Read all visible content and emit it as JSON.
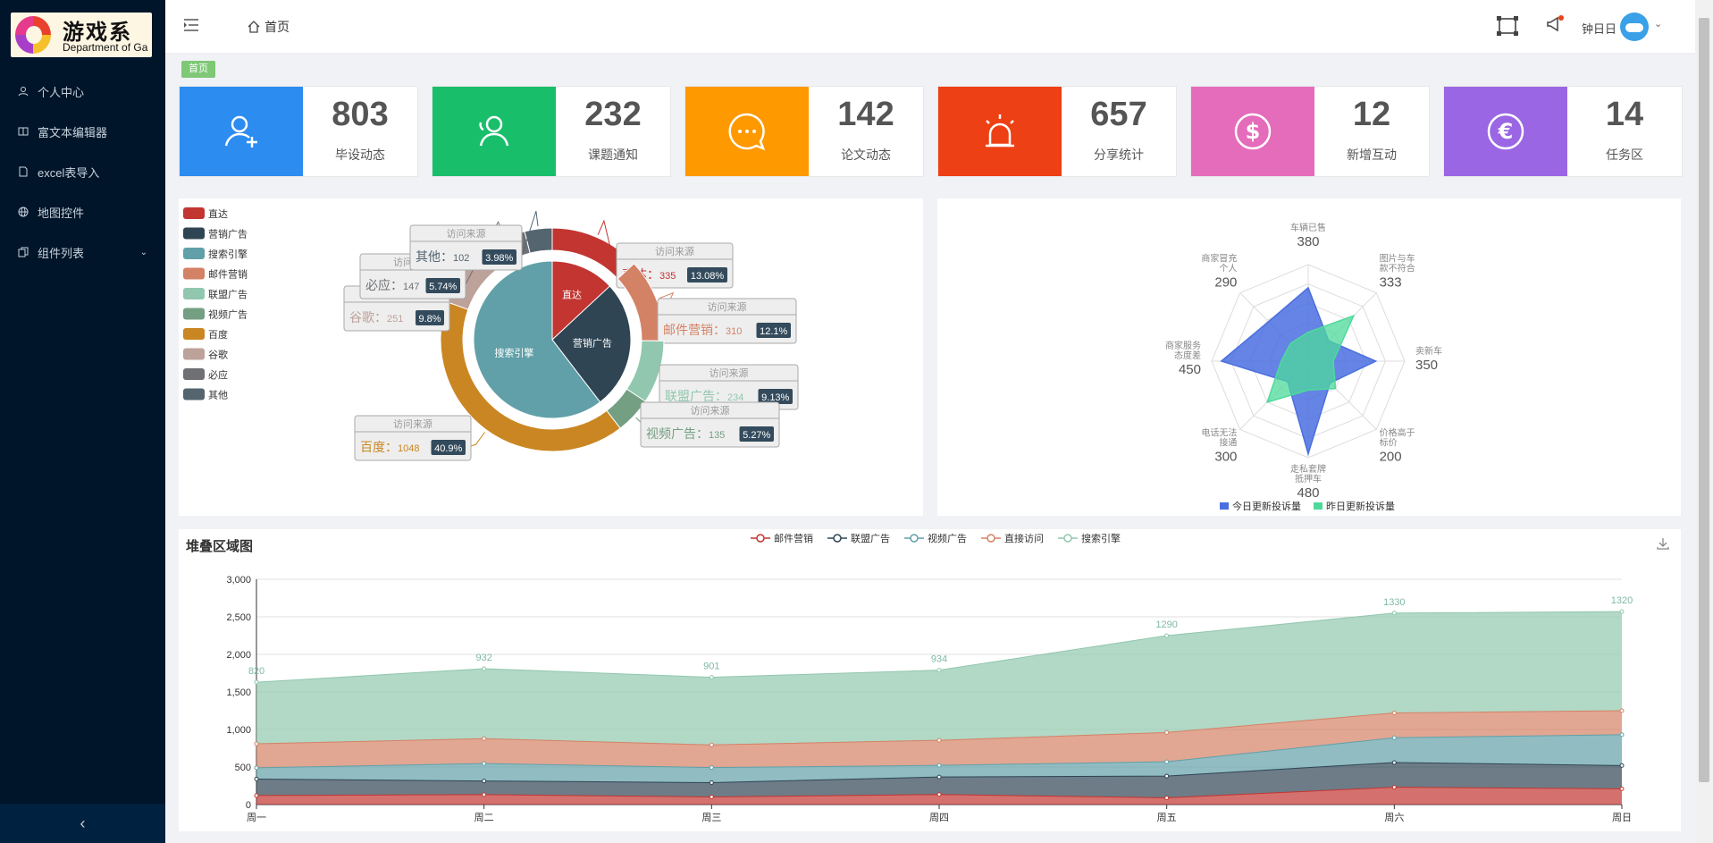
{
  "sidebar": {
    "logo_title": "游戏系",
    "logo_subtitle": "Department of Ga",
    "items": [
      {
        "label": "个人中心"
      },
      {
        "label": "富文本编辑器"
      },
      {
        "label": "excel表导入"
      },
      {
        "label": "地图控件"
      },
      {
        "label": "组件列表"
      }
    ]
  },
  "header": {
    "breadcrumb": "首页",
    "username": "钟日日"
  },
  "tag": "首页",
  "cards": [
    {
      "value": "803",
      "label": "毕设动态",
      "color": "#2d8cf0",
      "icon": "user-add-icon"
    },
    {
      "value": "232",
      "label": "课题通知",
      "color": "#19be6b",
      "icon": "users-icon"
    },
    {
      "value": "142",
      "label": "论文动态",
      "color": "#ff9900",
      "icon": "chat-icon"
    },
    {
      "value": "657",
      "label": "分享统计",
      "color": "#ed4014",
      "icon": "alarm-icon"
    },
    {
      "value": "12",
      "label": "新增互动",
      "color": "#e46cbb",
      "icon": "dollar-icon"
    },
    {
      "value": "14",
      "label": "任务区",
      "color": "#9a66e4",
      "icon": "euro-icon"
    }
  ],
  "chart_data": [
    {
      "type": "pie",
      "title": "",
      "tooltip_title": "访问来源",
      "legend": [
        "直达",
        "营销广告",
        "搜索引擎",
        "邮件营销",
        "联盟广告",
        "视频广告",
        "百度",
        "谷歌",
        "必应",
        "其他"
      ],
      "colors": {
        "直达": "#c23531",
        "营销广告": "#2f4554",
        "搜索引擎": "#61a0a8",
        "邮件营销": "#d48265",
        "联盟广告": "#91c7ae",
        "视频广告": "#749f83",
        "百度": "#ca8622",
        "谷歌": "#bda29a",
        "必应": "#6e7074",
        "其他": "#546570"
      },
      "inner": [
        {
          "name": "直达",
          "value": 335
        },
        {
          "name": "营销广告",
          "value": 679
        },
        {
          "name": "搜索引擎",
          "value": 1548
        }
      ],
      "outer": [
        {
          "name": "直达",
          "value": 335,
          "pct": "13.08%"
        },
        {
          "name": "邮件营销",
          "value": 310,
          "pct": "12.1%"
        },
        {
          "name": "联盟广告",
          "value": 234,
          "pct": "9.13%"
        },
        {
          "name": "视频广告",
          "value": 135,
          "pct": "5.27%"
        },
        {
          "name": "百度",
          "value": 1048,
          "pct": "40.9%"
        },
        {
          "name": "谷歌",
          "value": 251,
          "pct": "9.8%"
        },
        {
          "name": "必应",
          "value": 147,
          "pct": "5.74%"
        },
        {
          "name": "其他",
          "value": 102,
          "pct": "3.98%"
        }
      ]
    },
    {
      "type": "radar",
      "indicators": [
        {
          "name": "车辆已售",
          "max": 500
        },
        {
          "name": "图片与车款不符合",
          "max": 500
        },
        {
          "name": "卖新车",
          "max": 500
        },
        {
          "name": "价格高于标价",
          "max": 500
        },
        {
          "name": "走私套牌抵押车",
          "max": 500
        },
        {
          "name": "电话无法接通",
          "max": 500
        },
        {
          "name": "商家服务态度差",
          "max": 500
        },
        {
          "name": "商家冒充个人",
          "max": 500
        }
      ],
      "indicator_lines": [
        [
          "车辆已售"
        ],
        [
          "图片与车",
          "款不符合"
        ],
        [
          "卖新车"
        ],
        [
          "价格高于",
          "标价"
        ],
        [
          "走私套牌",
          "抵押车"
        ],
        [
          "电话无法",
          "接通"
        ],
        [
          "商家服务",
          "态度差"
        ],
        [
          "商家冒充",
          "个人"
        ]
      ],
      "value_labels": [
        "380",
        "333",
        "350",
        "200",
        "480",
        "300",
        "450",
        "290"
      ],
      "series": [
        {
          "name": "今日更新投诉量",
          "values": [
            380,
            150,
            350,
            160,
            480,
            150,
            450,
            290
          ],
          "color": "#4a6fe0"
        },
        {
          "name": "昨日更新投诉量",
          "values": [
            150,
            333,
            130,
            200,
            150,
            300,
            140,
            130
          ],
          "color": "#4ed99b"
        }
      ]
    },
    {
      "type": "area",
      "title": "堆叠区域图",
      "categories": [
        "周一",
        "周二",
        "周三",
        "周四",
        "周五",
        "周六",
        "周日"
      ],
      "ylim": [
        0,
        3000
      ],
      "yticks": [
        "0",
        "500",
        "1,000",
        "1,500",
        "2,000",
        "2,500",
        "3,000"
      ],
      "yvalues": [
        0,
        500,
        1000,
        1500,
        2000,
        2500,
        3000
      ],
      "series": [
        {
          "name": "邮件营销",
          "values": [
            120,
            132,
            101,
            134,
            90,
            230,
            210
          ],
          "color": "#c23531"
        },
        {
          "name": "联盟广告",
          "values": [
            220,
            182,
            191,
            234,
            290,
            330,
            310
          ],
          "color": "#2f4554"
        },
        {
          "name": "视频广告",
          "values": [
            150,
            232,
            201,
            154,
            190,
            330,
            410
          ],
          "color": "#61a0a8"
        },
        {
          "name": "直接访问",
          "values": [
            320,
            332,
            301,
            334,
            390,
            330,
            320
          ],
          "color": "#d48265"
        },
        {
          "name": "搜索引擎",
          "values": [
            820,
            932,
            901,
            934,
            1290,
            1330,
            1320
          ],
          "color": "#91c7ae"
        }
      ],
      "top_labels": [
        "820",
        "932",
        "901",
        "934",
        "1290",
        "1330",
        "1320"
      ]
    }
  ]
}
